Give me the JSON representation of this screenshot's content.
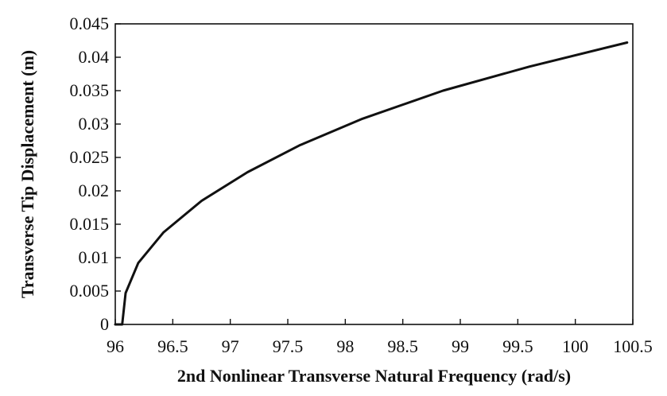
{
  "chart_data": {
    "type": "line",
    "title": "",
    "xlabel": "2nd Nonlinear Transverse Natural Frequency (rad/s)",
    "ylabel": "Transverse Tip Displacement (m)",
    "xlim": [
      96,
      100.5
    ],
    "ylim": [
      0,
      0.045
    ],
    "x_ticks": [
      "96",
      "96.5",
      "97",
      "97.5",
      "98",
      "98.5",
      "99",
      "99.5",
      "100",
      "100.5"
    ],
    "y_ticks": [
      "0",
      "0.005",
      "0.01",
      "0.015",
      "0.02",
      "0.025",
      "0.03",
      "0.035",
      "0.04",
      "0.045"
    ],
    "grid": false,
    "legend": "none",
    "series": [
      {
        "color": "#111111",
        "x": [
          96.0,
          96.06,
          96.09,
          96.2,
          96.42,
          96.75,
          97.15,
          97.6,
          98.15,
          98.85,
          99.6,
          100.45
        ],
        "y": [
          0.0,
          0.0,
          0.0047,
          0.0092,
          0.0138,
          0.0185,
          0.0228,
          0.0268,
          0.0308,
          0.035,
          0.0386,
          0.0422
        ]
      }
    ]
  }
}
